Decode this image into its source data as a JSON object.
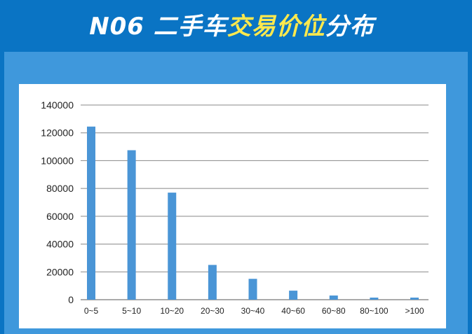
{
  "header": {
    "title_part1": "N06 二手车",
    "title_highlight": "交易价位",
    "title_part2": "分布"
  },
  "colors": {
    "background": "#0a74c4",
    "panel": "#3f98dc",
    "bar": "#4a95d6",
    "highlight_text": "#ffe94d"
  },
  "chart_data": {
    "type": "bar",
    "categories": [
      "0~5",
      "5~10",
      "10~20",
      "20~30",
      "30~40",
      "40~60",
      "60~80",
      "80~100",
      ">100"
    ],
    "values": [
      124500,
      107500,
      77000,
      25000,
      15000,
      6500,
      3000,
      1500,
      1500
    ],
    "title": "",
    "xlabel": "",
    "ylabel": "",
    "ylim": [
      0,
      140000
    ],
    "yticks": [
      0,
      20000,
      40000,
      60000,
      80000,
      100000,
      120000,
      140000
    ],
    "grid": true,
    "legend": "none"
  }
}
